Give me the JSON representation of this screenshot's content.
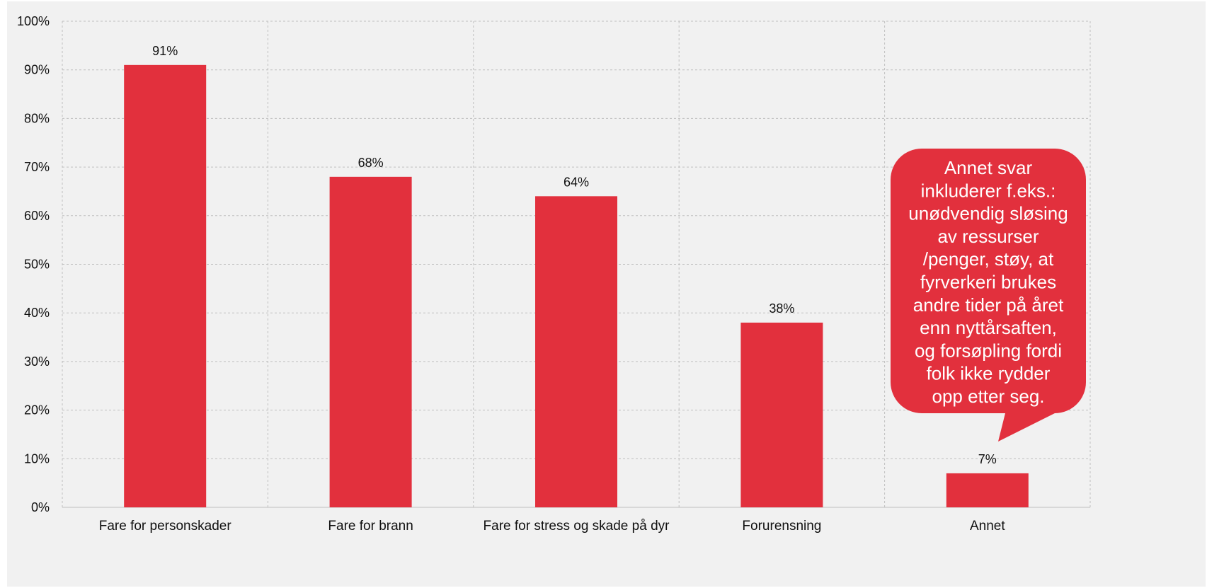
{
  "colors": {
    "bar": "#e2303d",
    "plot_background": "#f1f1f1",
    "grid": "#bfbfbf",
    "callout": "#e2303d",
    "callout_text": "#ffffff"
  },
  "chart_data": {
    "type": "bar",
    "categories": [
      "Fare for personskader",
      "Fare for brann",
      "Fare for stress og skade på dyr",
      "Forurensning",
      "Annet"
    ],
    "values": [
      91,
      68,
      64,
      38,
      7
    ],
    "data_labels": [
      "91%",
      "68%",
      "64%",
      "38%",
      "7%"
    ],
    "y_ticks": [
      "0%",
      "10%",
      "20%",
      "30%",
      "40%",
      "50%",
      "60%",
      "70%",
      "80%",
      "90%",
      "100%"
    ],
    "ylim": [
      0,
      100
    ],
    "grid": true,
    "annotation": {
      "target_category": "Annet",
      "lines": [
        "Annet svar",
        "inkluderer f.eks.:",
        "unødvendig sløsing",
        "av ressurser",
        "/penger, støy, at",
        "fyrverkeri brukes",
        "andre tider på året",
        "enn nyttårsaften,",
        "og forsøpling fordi",
        "folk ikke rydder",
        "opp etter seg."
      ]
    }
  }
}
